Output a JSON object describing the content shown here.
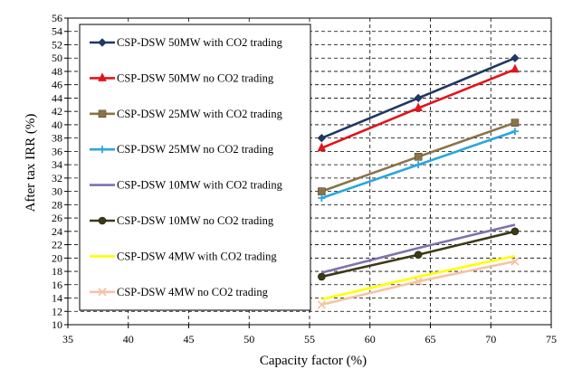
{
  "chart_data": {
    "type": "line",
    "title": "",
    "xlabel": "Capacity factor (%)",
    "ylabel": "After tax IRR (%)",
    "xlim": [
      35,
      75
    ],
    "ylim": [
      10,
      56
    ],
    "xticks": [
      35,
      40,
      45,
      50,
      55,
      60,
      65,
      70,
      75
    ],
    "yticks": [
      10,
      12,
      14,
      16,
      18,
      20,
      22,
      24,
      26,
      28,
      30,
      32,
      34,
      36,
      38,
      40,
      42,
      44,
      46,
      48,
      50,
      52,
      54,
      56
    ],
    "grid": true,
    "legend_position": "left",
    "x": [
      56,
      64,
      72
    ],
    "series": [
      {
        "name": "CSP-DSW 50MW with CO2 trading",
        "values": [
          38,
          44,
          50
        ],
        "color": "#1f3864",
        "marker": "diamond"
      },
      {
        "name": "CSP-DSW 50MW no CO2 trading",
        "values": [
          36.5,
          42.5,
          48.3
        ],
        "color": "#e0161c",
        "marker": "triangle"
      },
      {
        "name": "CSP-DSW 25MW with CO2 trading",
        "values": [
          30,
          35.2,
          40.3
        ],
        "color": "#8b7349",
        "marker": "square"
      },
      {
        "name": "CSP-DSW 25MW no CO2 trading",
        "values": [
          29,
          34,
          39
        ],
        "color": "#2aa6de",
        "marker": "plus"
      },
      {
        "name": "CSP-DSW 10MW with CO2 trading",
        "values": [
          17.8,
          21.5,
          25
        ],
        "color": "#7d71ae",
        "marker": "none"
      },
      {
        "name": "CSP-DSW 10MW no CO2 trading",
        "values": [
          17.2,
          20.5,
          24
        ],
        "color": "#3d3a18",
        "marker": "circle"
      },
      {
        "name": "CSP-DSW 4MW with CO2 trading",
        "values": [
          13.8,
          17.2,
          20.3
        ],
        "color": "#ffff00",
        "marker": "none"
      },
      {
        "name": "CSP-DSW 4MW no CO2 trading",
        "values": [
          13,
          16.5,
          19.5
        ],
        "color": "#f6c2a6",
        "marker": "x"
      }
    ]
  }
}
